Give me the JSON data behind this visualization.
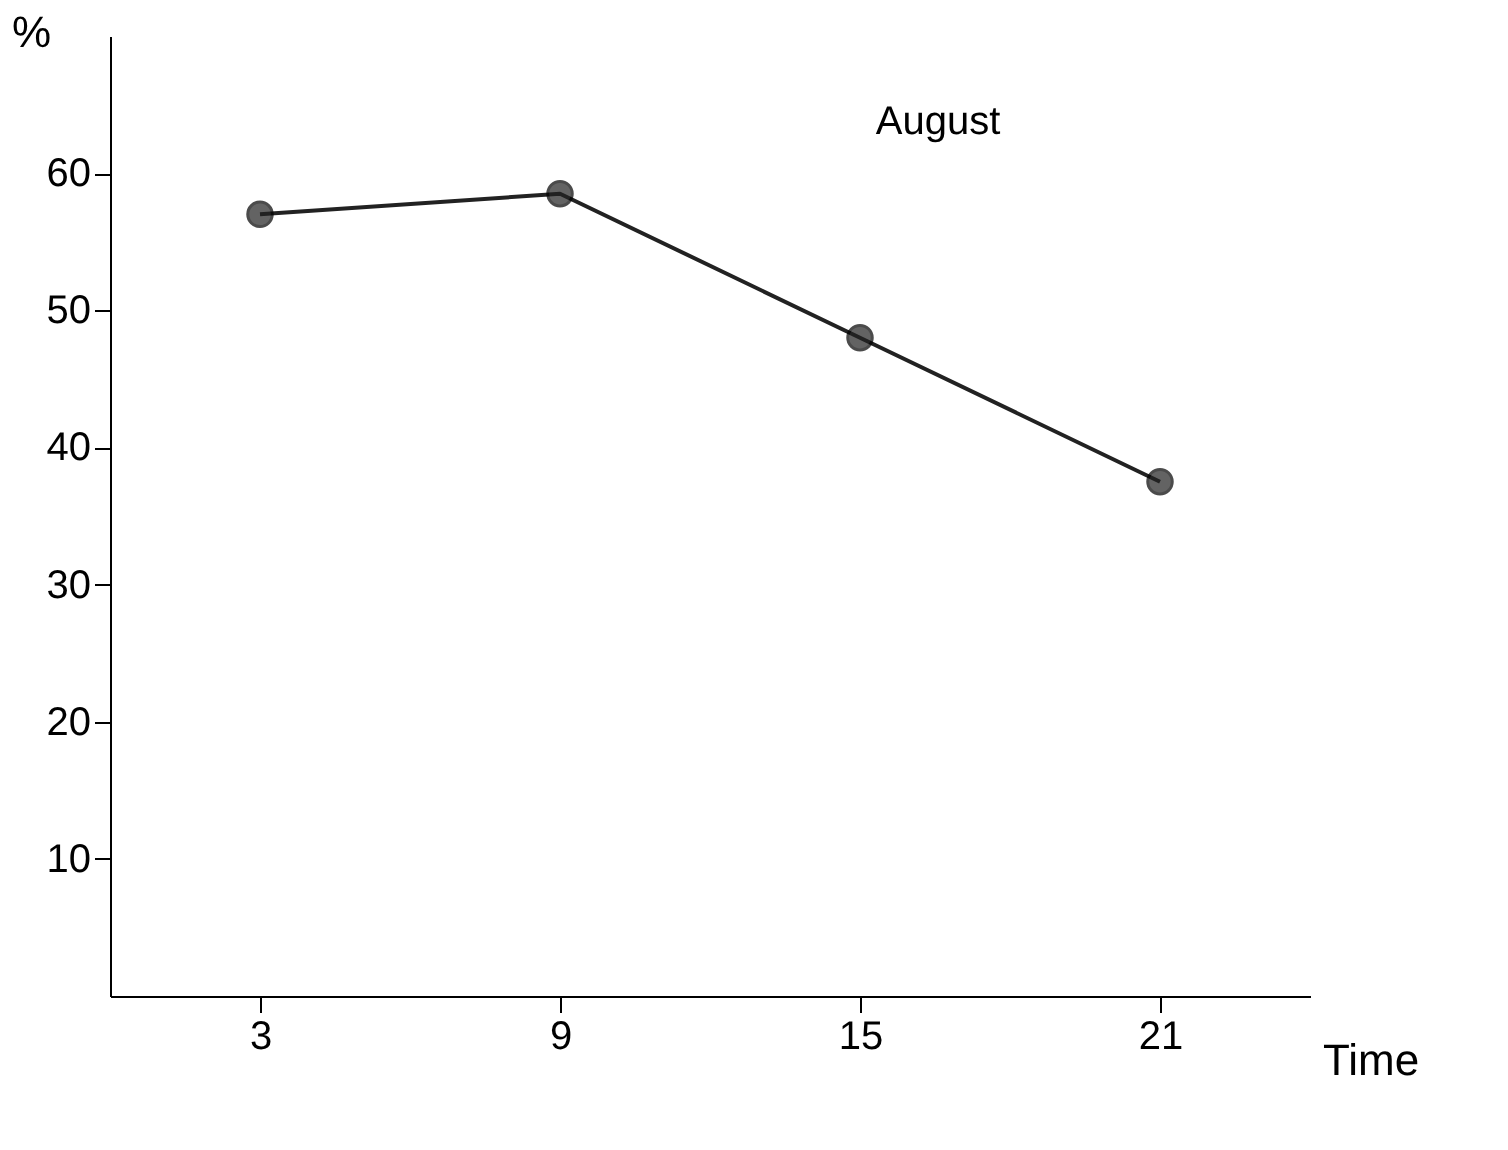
{
  "chart_data": {
    "type": "line",
    "x": [
      3,
      9,
      15,
      21
    ],
    "values": [
      57,
      58.5,
      48,
      37.5
    ],
    "color": "#222222",
    "xlabel": "Time",
    "ylabel": "%",
    "xlim": [
      0,
      24
    ],
    "ylim": [
      0,
      70
    ],
    "xticks": [
      3,
      9,
      15,
      21
    ],
    "yticks": [
      10,
      20,
      30,
      40,
      50,
      60
    ],
    "marker": "circle",
    "line_style": "solid",
    "grid": false,
    "annotations": [
      "August"
    ]
  }
}
